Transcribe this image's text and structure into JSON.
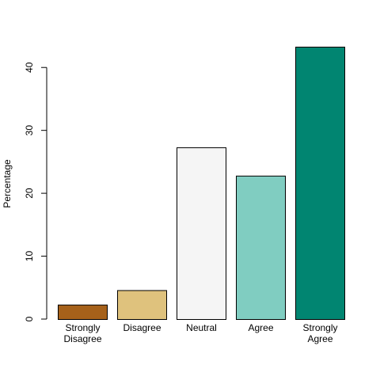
{
  "chart_data": {
    "type": "bar",
    "title": "",
    "xlabel": "",
    "ylabel": "Percentage",
    "ylim": [
      0,
      43.3
    ],
    "yticks": [
      0,
      10,
      20,
      30,
      40
    ],
    "grid": false,
    "legend": "none",
    "categories": [
      [
        "Strongly",
        "Disagree"
      ],
      [
        "Disagree"
      ],
      [
        "Neutral"
      ],
      [
        "Agree"
      ],
      [
        "Strongly",
        "Agree"
      ]
    ],
    "values": [
      2.3,
      4.6,
      27.3,
      22.8,
      43.3
    ],
    "colors": [
      "#A6611A",
      "#DFC27D",
      "#F5F5F5",
      "#80CDC1",
      "#018571"
    ]
  }
}
